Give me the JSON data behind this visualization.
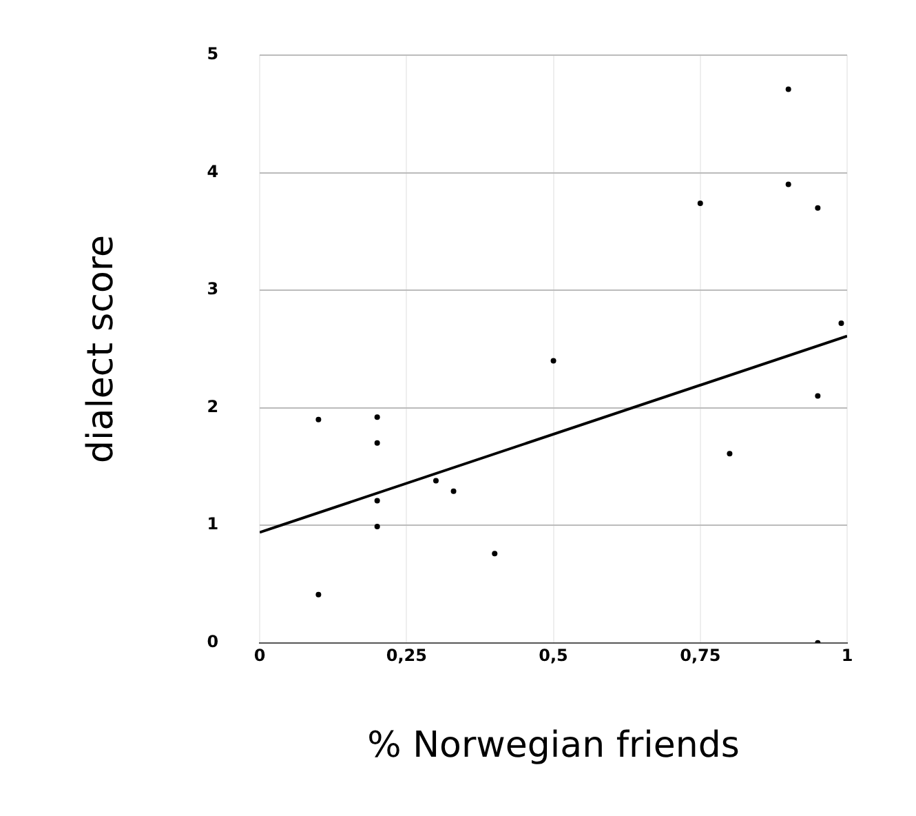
{
  "chart_data": {
    "type": "scatter",
    "xlabel": "% Norwegian friends",
    "ylabel": "dialect score",
    "xlim": [
      0,
      1
    ],
    "xticks": [
      0,
      {
        "value": 0.25,
        "label": "0,25"
      },
      {
        "value": 0.5,
        "label": "0,5"
      },
      {
        "value": 0.75,
        "label": "0,75"
      },
      1
    ],
    "ylim": [
      0,
      5
    ],
    "yticks": [
      0,
      1,
      2,
      3,
      4,
      5
    ],
    "grid": true,
    "marker": "circle",
    "series": [
      {
        "type": "scatter",
        "color": "#000000",
        "x": [
          0.1,
          0.1,
          0.2,
          0.2,
          0.2,
          0.2,
          0.3,
          0.33,
          0.4,
          0.5,
          0.75,
          0.8,
          0.9,
          0.9,
          0.95,
          0.95,
          0.95,
          0.99
        ],
        "values": [
          1.9,
          0.41,
          1.92,
          1.7,
          1.21,
          0.99,
          1.38,
          1.29,
          0.76,
          2.4,
          3.74,
          1.61,
          4.71,
          3.9,
          3.7,
          2.1,
          0,
          2.72
        ]
      },
      {
        "type": "line",
        "color": "#000000",
        "x": [
          0,
          1
        ],
        "values": [
          0.94,
          2.61
        ],
        "marker": "none"
      }
    ]
  }
}
